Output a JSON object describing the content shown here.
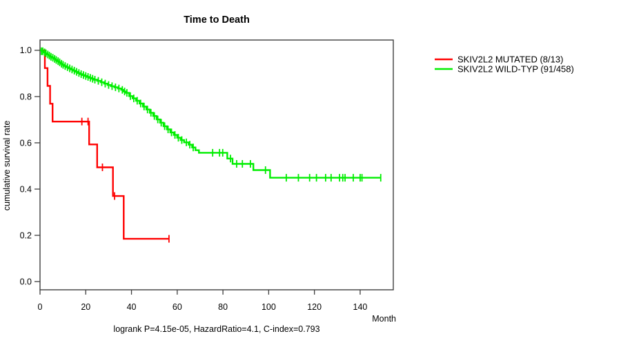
{
  "chart_data": {
    "type": "line",
    "subtype": "kaplan-meier-step-survival",
    "title": "Time to Death",
    "xlabel": "Month",
    "ylabel": "cumulative survival rate",
    "annotation": "logrank P=4.15e-05, HazardRatio=4.1, C-index=0.793",
    "xlim": [
      0,
      154.5
    ],
    "ylim": [
      -0.0355,
      1.0445
    ],
    "xticks": [
      0,
      20,
      40,
      60,
      80,
      100,
      120,
      140
    ],
    "yticks": [
      0,
      0.2,
      0.4,
      0.6,
      0.8,
      1.0
    ],
    "ytick_labels": [
      "0.0",
      "0.2",
      "0.4",
      "0.6",
      "0.8",
      "1.0"
    ],
    "grid": false,
    "legend_position": "right-outside",
    "series": [
      {
        "name": "SKIV2L2 MUTATED (8/13)",
        "color": "#ff0000",
        "steps": [
          [
            0,
            1.0
          ],
          [
            2.1,
            0.923
          ],
          [
            3.3,
            0.846
          ],
          [
            4.4,
            0.769
          ],
          [
            5.5,
            0.692
          ],
          [
            21.5,
            0.593
          ],
          [
            25,
            0.494
          ],
          [
            31.9,
            0.37
          ],
          [
            36.6,
            0.185
          ]
        ],
        "end_month": 56.4,
        "censors": [
          [
            18.3,
            0.692
          ],
          [
            21.0,
            0.692
          ],
          [
            27.3,
            0.494
          ],
          [
            32.6,
            0.37
          ],
          [
            56.4,
            0.185
          ]
        ]
      },
      {
        "name": "SKIV2L2 WILD-TYP (91/458)",
        "color": "#00ee00",
        "steps": [
          [
            0,
            1.0
          ],
          [
            0.8,
            0.996
          ],
          [
            1.5,
            0.991
          ],
          [
            2.2,
            0.987
          ],
          [
            3,
            0.982
          ],
          [
            3.8,
            0.977
          ],
          [
            4.5,
            0.972
          ],
          [
            5.2,
            0.968
          ],
          [
            6,
            0.963
          ],
          [
            6.8,
            0.958
          ],
          [
            7.5,
            0.953
          ],
          [
            8.3,
            0.948
          ],
          [
            9,
            0.942
          ],
          [
            9.8,
            0.937
          ],
          [
            10.5,
            0.932
          ],
          [
            11.5,
            0.927
          ],
          [
            12.5,
            0.922
          ],
          [
            13.5,
            0.917
          ],
          [
            14.5,
            0.912
          ],
          [
            15.5,
            0.907
          ],
          [
            16.5,
            0.902
          ],
          [
            17.5,
            0.897
          ],
          [
            18.5,
            0.893
          ],
          [
            19.5,
            0.889
          ],
          [
            20.5,
            0.885
          ],
          [
            21.5,
            0.881
          ],
          [
            22.5,
            0.877
          ],
          [
            23.5,
            0.873
          ],
          [
            25,
            0.868
          ],
          [
            26.5,
            0.862
          ],
          [
            28,
            0.856
          ],
          [
            29.5,
            0.85
          ],
          [
            31,
            0.845
          ],
          [
            32.5,
            0.84
          ],
          [
            34,
            0.835
          ],
          [
            35.5,
            0.829
          ],
          [
            36.5,
            0.822
          ],
          [
            37.5,
            0.816
          ],
          [
            39,
            0.802
          ],
          [
            40.5,
            0.792
          ],
          [
            42,
            0.782
          ],
          [
            43.5,
            0.77
          ],
          [
            45,
            0.757
          ],
          [
            46.5,
            0.744
          ],
          [
            48,
            0.73
          ],
          [
            49.5,
            0.716
          ],
          [
            51,
            0.701
          ],
          [
            52.5,
            0.687
          ],
          [
            54,
            0.672
          ],
          [
            55.5,
            0.658
          ],
          [
            57,
            0.645
          ],
          [
            58.5,
            0.634
          ],
          [
            60,
            0.622
          ],
          [
            61.5,
            0.612
          ],
          [
            63,
            0.602
          ],
          [
            65,
            0.592
          ],
          [
            66.5,
            0.58
          ],
          [
            68,
            0.568
          ],
          [
            69.5,
            0.557
          ],
          [
            81.9,
            0.532
          ],
          [
            84.2,
            0.509
          ],
          [
            93.3,
            0.482
          ],
          [
            100.6,
            0.449
          ]
        ],
        "end_month": 149,
        "censors": [
          [
            0.6,
            0.996
          ],
          [
            1.2,
            0.996
          ],
          [
            2,
            0.991
          ],
          [
            2.6,
            0.987
          ],
          [
            3.4,
            0.982
          ],
          [
            4.1,
            0.977
          ],
          [
            4.8,
            0.972
          ],
          [
            5.6,
            0.968
          ],
          [
            6.4,
            0.963
          ],
          [
            7.1,
            0.958
          ],
          [
            7.9,
            0.953
          ],
          [
            8.6,
            0.948
          ],
          [
            9.4,
            0.942
          ],
          [
            10.1,
            0.937
          ],
          [
            11,
            0.932
          ],
          [
            12,
            0.927
          ],
          [
            13,
            0.922
          ],
          [
            14,
            0.917
          ],
          [
            15,
            0.912
          ],
          [
            16,
            0.907
          ],
          [
            17,
            0.902
          ],
          [
            18,
            0.897
          ],
          [
            19,
            0.893
          ],
          [
            20,
            0.889
          ],
          [
            21,
            0.885
          ],
          [
            22,
            0.881
          ],
          [
            23,
            0.877
          ],
          [
            24,
            0.873
          ],
          [
            25.5,
            0.868
          ],
          [
            27,
            0.862
          ],
          [
            28.5,
            0.856
          ],
          [
            30,
            0.85
          ],
          [
            31.5,
            0.845
          ],
          [
            33,
            0.84
          ],
          [
            34.5,
            0.835
          ],
          [
            36,
            0.829
          ],
          [
            37,
            0.822
          ],
          [
            38,
            0.816
          ],
          [
            39.5,
            0.802
          ],
          [
            41,
            0.792
          ],
          [
            42.5,
            0.782
          ],
          [
            44,
            0.77
          ],
          [
            45.5,
            0.757
          ],
          [
            47,
            0.744
          ],
          [
            48.5,
            0.73
          ],
          [
            50,
            0.716
          ],
          [
            51.5,
            0.701
          ],
          [
            53,
            0.687
          ],
          [
            54.5,
            0.672
          ],
          [
            56,
            0.658
          ],
          [
            57.5,
            0.645
          ],
          [
            59,
            0.634
          ],
          [
            60.5,
            0.622
          ],
          [
            62,
            0.612
          ],
          [
            64,
            0.602
          ],
          [
            65.5,
            0.592
          ],
          [
            67,
            0.58
          ],
          [
            75.5,
            0.557
          ],
          [
            78.5,
            0.557
          ],
          [
            79.9,
            0.557
          ],
          [
            83.3,
            0.532
          ],
          [
            86,
            0.509
          ],
          [
            88.5,
            0.509
          ],
          [
            92,
            0.509
          ],
          [
            98.6,
            0.482
          ],
          [
            107.7,
            0.449
          ],
          [
            113,
            0.449
          ],
          [
            117.9,
            0.449
          ],
          [
            120.9,
            0.449
          ],
          [
            124.9,
            0.449
          ],
          [
            127.3,
            0.449
          ],
          [
            131,
            0.449
          ],
          [
            132.4,
            0.449
          ],
          [
            133.4,
            0.449
          ],
          [
            137,
            0.449
          ],
          [
            140,
            0.449
          ],
          [
            140.8,
            0.449
          ],
          [
            149,
            0.449
          ]
        ]
      }
    ]
  }
}
